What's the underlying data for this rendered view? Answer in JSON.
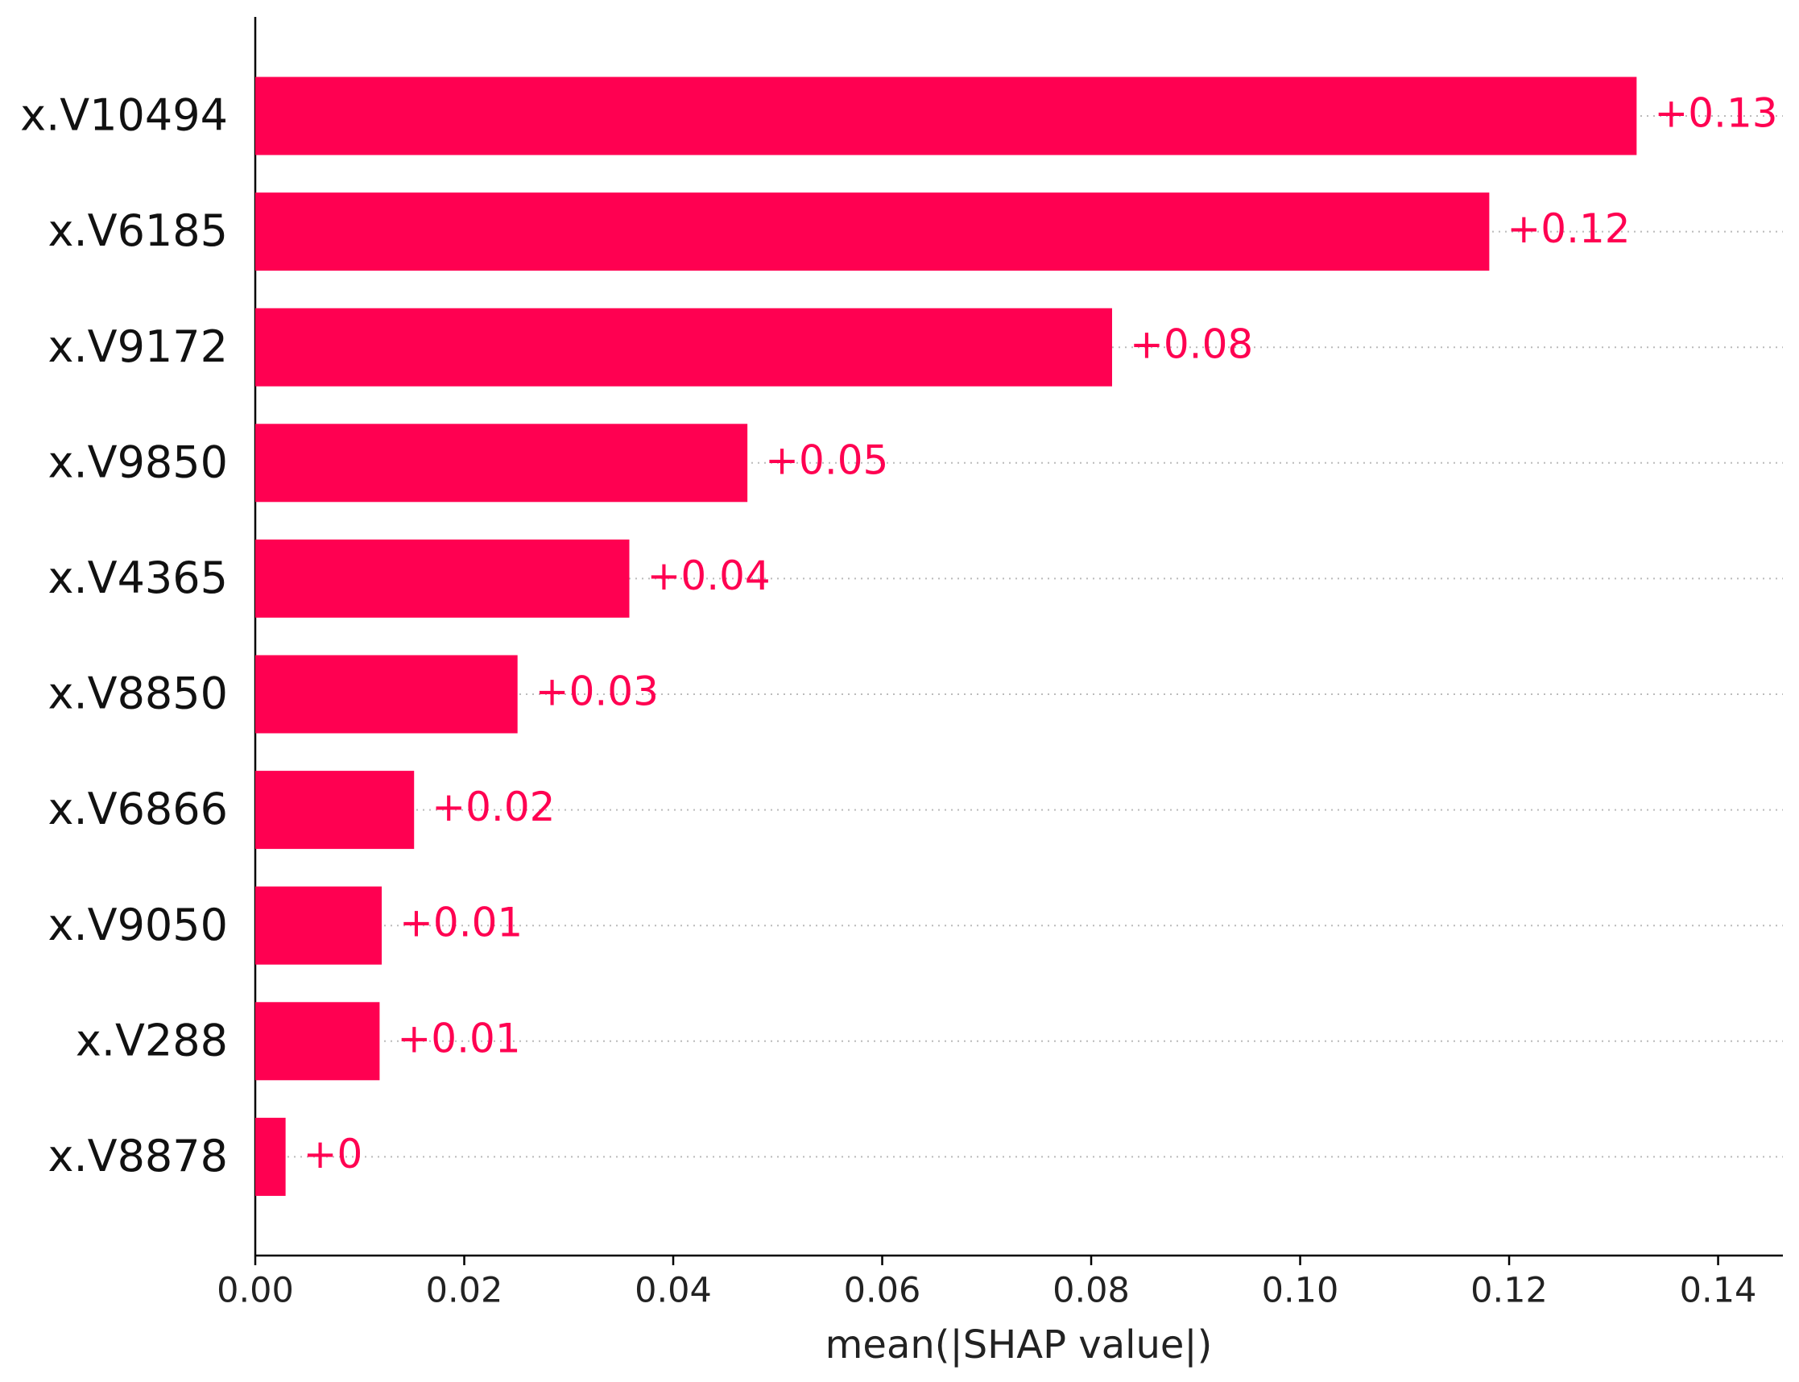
{
  "chart_data": {
    "type": "bar",
    "orientation": "horizontal",
    "x_label": "mean(|SHAP value|)",
    "categories": [
      "x.V10494",
      "x.V6185",
      "x.V9172",
      "x.V9850",
      "x.V4365",
      "x.V8850",
      "x.V6866",
      "x.V9050",
      "x.V288",
      "x.V8878"
    ],
    "values": [
      0.1322,
      0.1181,
      0.082,
      0.0471,
      0.0358,
      0.0251,
      0.0152,
      0.0121,
      0.0119,
      0.0029
    ],
    "value_labels": [
      "+0.13",
      "+0.12",
      "+0.08",
      "+0.05",
      "+0.04",
      "+0.03",
      "+0.02",
      "+0.01",
      "+0.01",
      "+0"
    ],
    "color": "#ff0051",
    "xlim": [
      0,
      0.1462
    ],
    "xticks": [
      {
        "value": 0,
        "label": "0.00"
      },
      {
        "value": 0.02,
        "label": "0.02"
      },
      {
        "value": 0.04,
        "label": "0.04"
      },
      {
        "value": 0.06,
        "label": "0.06"
      },
      {
        "value": 0.08,
        "label": "0.08"
      },
      {
        "value": 0.1,
        "label": "0.10"
      },
      {
        "value": 0.12,
        "label": "0.12"
      },
      {
        "value": 0.14,
        "label": "0.14"
      }
    ]
  }
}
